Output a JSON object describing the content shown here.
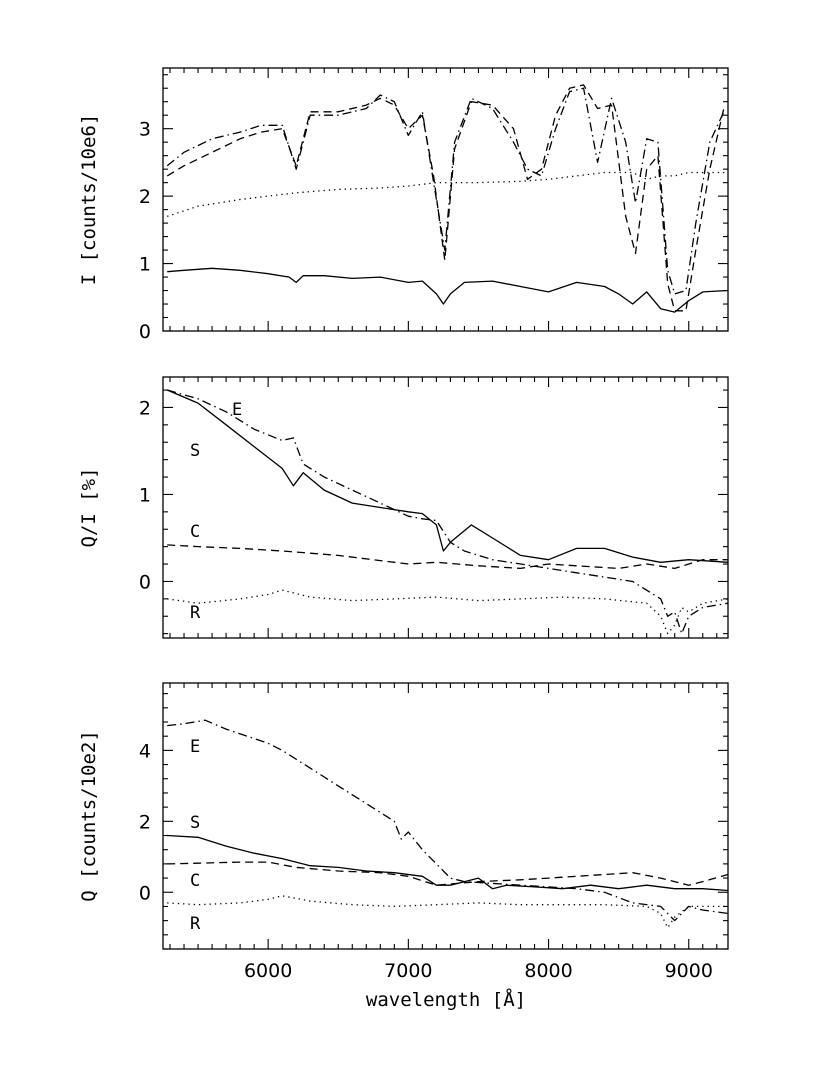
{
  "chart_data": [
    {
      "type": "line",
      "panel": "top",
      "ylabel": "I [counts/10e6]",
      "xlim": [
        5250,
        9280
      ],
      "ylim": [
        0,
        3.9
      ],
      "xticks": [
        6000,
        7000,
        8000,
        9000
      ],
      "yticks": [
        0,
        1,
        2,
        3
      ],
      "tick_labels": [
        "0",
        "1",
        "2",
        "3"
      ],
      "series": [
        {
          "style": "solid",
          "x": [
            5280,
            5400,
            5600,
            5800,
            6000,
            6150,
            6200,
            6250,
            6400,
            6600,
            6800,
            7000,
            7100,
            7200,
            7250,
            7300,
            7400,
            7600,
            7800,
            8000,
            8200,
            8400,
            8500,
            8600,
            8700,
            8800,
            8900,
            9000,
            9100,
            9280
          ],
          "y": [
            0.88,
            0.9,
            0.93,
            0.9,
            0.85,
            0.8,
            0.72,
            0.82,
            0.82,
            0.78,
            0.8,
            0.72,
            0.74,
            0.55,
            0.4,
            0.55,
            0.72,
            0.74,
            0.66,
            0.58,
            0.72,
            0.66,
            0.55,
            0.4,
            0.58,
            0.33,
            0.28,
            0.45,
            0.58,
            0.6
          ]
        },
        {
          "style": "dotted",
          "x": [
            5280,
            5500,
            5800,
            6000,
            6200,
            6500,
            6800,
            7000,
            7200,
            7500,
            7800,
            8000,
            8200,
            8400,
            8600,
            8700,
            8800,
            8900,
            9000,
            9100,
            9280
          ],
          "y": [
            1.7,
            1.85,
            1.95,
            2.0,
            2.05,
            2.1,
            2.12,
            2.15,
            2.2,
            2.2,
            2.22,
            2.25,
            2.3,
            2.35,
            2.35,
            2.25,
            2.3,
            2.3,
            2.35,
            2.35,
            2.35
          ]
        },
        {
          "style": "dashed",
          "x": [
            5280,
            5400,
            5600,
            5800,
            5950,
            6100,
            6200,
            6300,
            6500,
            6700,
            6800,
            6900,
            7000,
            7100,
            7180,
            7260,
            7330,
            7450,
            7600,
            7750,
            7850,
            7950,
            8050,
            8150,
            8250,
            8350,
            8450,
            8550,
            8620,
            8700,
            8780,
            8850,
            8900,
            8980,
            9050,
            9150,
            9250
          ],
          "y": [
            2.3,
            2.45,
            2.65,
            2.85,
            2.95,
            3.0,
            2.45,
            3.25,
            3.25,
            3.35,
            3.45,
            3.35,
            3.0,
            3.2,
            2.3,
            1.05,
            2.7,
            3.4,
            3.35,
            3.0,
            2.25,
            2.4,
            3.2,
            3.6,
            3.65,
            3.3,
            3.35,
            1.7,
            1.15,
            2.4,
            2.6,
            0.7,
            0.3,
            0.3,
            1.2,
            2.4,
            3.3
          ]
        },
        {
          "style": "dashdot",
          "x": [
            5280,
            5400,
            5600,
            5800,
            5950,
            6100,
            6200,
            6300,
            6500,
            6700,
            6800,
            6900,
            7000,
            7100,
            7180,
            7260,
            7330,
            7450,
            7600,
            7750,
            7850,
            7950,
            8050,
            8150,
            8250,
            8350,
            8450,
            8550,
            8620,
            8700,
            8780,
            8850,
            8900,
            8980,
            9050,
            9150,
            9250
          ],
          "y": [
            2.45,
            2.65,
            2.85,
            2.95,
            3.05,
            3.05,
            2.4,
            3.2,
            3.2,
            3.3,
            3.5,
            3.4,
            2.9,
            3.25,
            2.2,
            1.2,
            2.8,
            3.45,
            3.3,
            2.8,
            2.4,
            2.3,
            3.0,
            3.55,
            3.6,
            2.5,
            3.45,
            2.8,
            1.9,
            2.85,
            2.8,
            0.9,
            0.55,
            0.6,
            1.6,
            2.8,
            3.25
          ]
        }
      ]
    },
    {
      "type": "line",
      "panel": "middle",
      "ylabel": "Q/I [%]",
      "xlim": [
        5250,
        9280
      ],
      "ylim": [
        -0.65,
        2.35
      ],
      "xticks": [
        6000,
        7000,
        8000,
        9000
      ],
      "yticks": [
        0,
        1,
        2
      ],
      "tick_labels": [
        "0",
        "1",
        "2"
      ],
      "series": [
        {
          "label": "S",
          "style": "solid",
          "x": [
            5280,
            5500,
            5700,
            5900,
            6100,
            6180,
            6250,
            6400,
            6600,
            6800,
            7000,
            7100,
            7200,
            7250,
            7300,
            7450,
            7600,
            7800,
            8000,
            8200,
            8400,
            8600,
            8800,
            9000,
            9280
          ],
          "y": [
            2.2,
            2.05,
            1.8,
            1.55,
            1.3,
            1.1,
            1.25,
            1.05,
            0.9,
            0.85,
            0.8,
            0.78,
            0.65,
            0.35,
            0.45,
            0.65,
            0.5,
            0.3,
            0.25,
            0.38,
            0.38,
            0.28,
            0.22,
            0.25,
            0.22
          ]
        },
        {
          "label": "E",
          "style": "dashdot",
          "x": [
            5280,
            5500,
            5700,
            5900,
            6100,
            6180,
            6250,
            6400,
            6600,
            6800,
            7000,
            7100,
            7200,
            7300,
            7400,
            7600,
            7800,
            8000,
            8200,
            8400,
            8600,
            8800,
            8850,
            8900,
            8950,
            9000,
            9100,
            9280
          ],
          "y": [
            2.2,
            2.1,
            1.95,
            1.75,
            1.62,
            1.65,
            1.35,
            1.2,
            1.05,
            0.9,
            0.75,
            0.72,
            0.7,
            0.45,
            0.35,
            0.25,
            0.2,
            0.15,
            0.1,
            0.05,
            0.0,
            -0.2,
            -0.4,
            -0.35,
            -0.6,
            -0.4,
            -0.3,
            -0.25
          ]
        },
        {
          "label": "C",
          "style": "dashed",
          "x": [
            5280,
            5500,
            5800,
            6100,
            6500,
            6800,
            7000,
            7200,
            7500,
            7800,
            8000,
            8200,
            8500,
            8700,
            8900,
            9100,
            9280
          ],
          "y": [
            0.42,
            0.4,
            0.38,
            0.35,
            0.3,
            0.24,
            0.2,
            0.22,
            0.18,
            0.15,
            0.2,
            0.18,
            0.15,
            0.2,
            0.15,
            0.25,
            0.25
          ]
        },
        {
          "label": "R",
          "style": "dotted",
          "x": [
            5280,
            5500,
            5800,
            6000,
            6100,
            6300,
            6600,
            6900,
            7200,
            7500,
            7800,
            8100,
            8400,
            8700,
            8800,
            8850,
            8900,
            8950,
            9000,
            9100,
            9280
          ],
          "y": [
            -0.2,
            -0.25,
            -0.2,
            -0.15,
            -0.1,
            -0.18,
            -0.22,
            -0.2,
            -0.18,
            -0.22,
            -0.2,
            -0.18,
            -0.2,
            -0.25,
            -0.4,
            -0.6,
            -0.5,
            -0.3,
            -0.35,
            -0.25,
            -0.2
          ]
        }
      ]
    },
    {
      "type": "line",
      "panel": "bottom",
      "ylabel": "Q [counts/10e2]",
      "xlabel": "wavelength [Å]",
      "xlim": [
        5250,
        9280
      ],
      "ylim": [
        -1.6,
        5.9
      ],
      "xticks": [
        6000,
        7000,
        8000,
        9000
      ],
      "yticks": [
        0,
        2,
        4
      ],
      "tick_labels": [
        "0",
        "2",
        "4"
      ],
      "x_tick_labels": [
        "6000",
        "7000",
        "8000",
        "9000"
      ],
      "series": [
        {
          "label": "S",
          "style": "solid",
          "x": [
            5280,
            5500,
            5700,
            5900,
            6100,
            6300,
            6500,
            6700,
            6900,
            7100,
            7200,
            7300,
            7500,
            7600,
            7700,
            7900,
            8100,
            8300,
            8500,
            8700,
            8900,
            9100,
            9280
          ],
          "y": [
            1.6,
            1.55,
            1.3,
            1.1,
            0.95,
            0.75,
            0.7,
            0.6,
            0.55,
            0.45,
            0.2,
            0.2,
            0.4,
            0.1,
            0.2,
            0.15,
            0.1,
            0.2,
            0.1,
            0.2,
            0.1,
            0.1,
            0.05
          ]
        },
        {
          "label": "E",
          "style": "dashdot",
          "x": [
            5280,
            5400,
            5550,
            5700,
            5850,
            6000,
            6100,
            6300,
            6500,
            6700,
            6900,
            6950,
            7000,
            7100,
            7200,
            7300,
            7400,
            7600,
            7800,
            8000,
            8200,
            8400,
            8600,
            8800,
            8900,
            9000,
            9100,
            9280
          ],
          "y": [
            4.7,
            4.75,
            4.85,
            4.6,
            4.4,
            4.2,
            4.0,
            3.5,
            3.0,
            2.5,
            2.0,
            1.5,
            1.7,
            1.2,
            0.8,
            0.4,
            0.3,
            0.25,
            0.2,
            0.15,
            0.1,
            0.0,
            -0.3,
            -0.4,
            -0.8,
            -0.4,
            -0.5,
            -0.6
          ]
        },
        {
          "label": "C",
          "style": "dashed",
          "x": [
            5280,
            5500,
            5800,
            6000,
            6200,
            6500,
            6800,
            7000,
            7200,
            7500,
            7800,
            8000,
            8200,
            8400,
            8600,
            8800,
            9000,
            9100,
            9280
          ],
          "y": [
            0.8,
            0.82,
            0.85,
            0.85,
            0.7,
            0.6,
            0.55,
            0.45,
            0.2,
            0.3,
            0.35,
            0.4,
            0.45,
            0.5,
            0.55,
            0.4,
            0.2,
            0.3,
            0.5
          ]
        },
        {
          "label": "R",
          "style": "dotted",
          "x": [
            5280,
            5500,
            5800,
            6000,
            6100,
            6300,
            6600,
            6900,
            7200,
            7500,
            7800,
            8100,
            8400,
            8700,
            8800,
            8850,
            8900,
            9000,
            9100,
            9280
          ],
          "y": [
            -0.3,
            -0.35,
            -0.3,
            -0.2,
            -0.1,
            -0.25,
            -0.35,
            -0.4,
            -0.35,
            -0.3,
            -0.35,
            -0.35,
            -0.35,
            -0.4,
            -0.6,
            -1.0,
            -0.7,
            -0.4,
            -0.4,
            -0.4
          ]
        }
      ]
    }
  ]
}
